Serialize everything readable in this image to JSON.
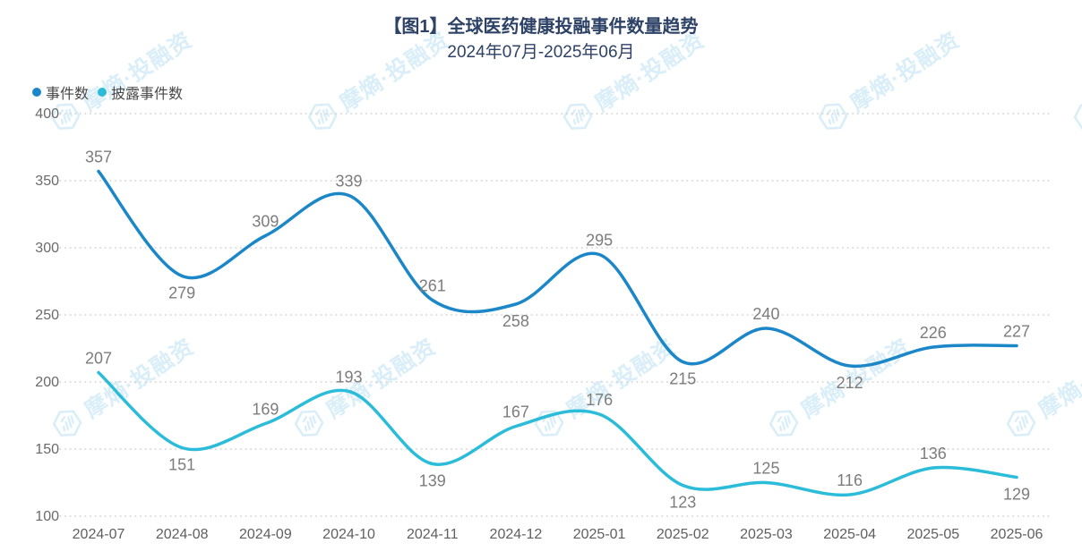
{
  "header": {
    "title": "【图1】全球医药健康投融事件数量趋势",
    "subtitle": "2024年07月-2025年06月"
  },
  "watermark": {
    "text": "摩熵·投融资",
    "icon": "hexagon-logo-icon"
  },
  "legend": {
    "items": [
      {
        "label": "事件数",
        "color": "#1b87c8"
      },
      {
        "label": "披露事件数",
        "color": "#2bbcd9"
      }
    ]
  },
  "chart_data": {
    "type": "line",
    "title": "【图1】全球医药健康投融事件数量趋势",
    "subtitle": "2024年07月-2025年06月",
    "categories": [
      "2024-07",
      "2024-08",
      "2024-09",
      "2024-10",
      "2024-11",
      "2024-12",
      "2025-01",
      "2025-02",
      "2025-03",
      "2025-04",
      "2025-05",
      "2025-06"
    ],
    "series": [
      {
        "name": "事件数",
        "color": "#1b87c8",
        "values": [
          357,
          279,
          309,
          339,
          261,
          258,
          295,
          215,
          240,
          212,
          226,
          227
        ],
        "label_positions": [
          "above",
          "below",
          "above",
          "above",
          "above",
          "below",
          "above",
          "below",
          "above",
          "below",
          "above",
          "above"
        ]
      },
      {
        "name": "披露事件数",
        "color": "#2bbcd9",
        "values": [
          207,
          151,
          169,
          193,
          139,
          167,
          176,
          123,
          125,
          116,
          136,
          129
        ],
        "label_positions": [
          "above",
          "below",
          "above",
          "above",
          "below",
          "above",
          "above",
          "below",
          "above",
          "above",
          "above",
          "below"
        ]
      }
    ],
    "ylim": [
      100,
      400
    ],
    "yticks": [
      400,
      350,
      300,
      250,
      200,
      150,
      100
    ],
    "xlabel": "",
    "ylabel": "",
    "grid": true,
    "grid_style": "dotted",
    "smooth": true,
    "legend_position": "top-left",
    "label_color": "#7c7c7c",
    "axis_color": "#666666",
    "grid_color": "#d2d2d2"
  }
}
